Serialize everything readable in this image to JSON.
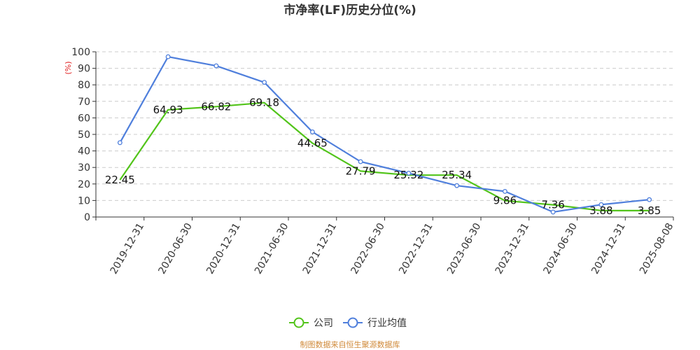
{
  "chart_data": {
    "type": "line",
    "title": "市净率(LF)历史分位(%)",
    "ylabel": "(%)",
    "ylim": [
      0,
      100
    ],
    "yticks": [
      "0",
      "10",
      "20",
      "30",
      "40",
      "50",
      "60",
      "70",
      "80",
      "90",
      "100"
    ],
    "grid": true,
    "legend_position": "bottom",
    "categories": [
      "2019-12-31",
      "2020-06-30",
      "2020-12-31",
      "2021-06-30",
      "2021-12-31",
      "2022-06-30",
      "2022-12-31",
      "2023-06-30",
      "2023-12-31",
      "2024-06-30",
      "2024-12-31",
      "2025-08-08"
    ],
    "series": [
      {
        "name": "公司",
        "color": "#52c41a",
        "values": [
          22.45,
          64.93,
          66.82,
          69.18,
          44.65,
          27.79,
          25.32,
          25.34,
          9.86,
          7.36,
          3.88,
          3.85
        ],
        "labels": [
          "22.45",
          "64.93",
          "66.82",
          "69.18",
          "44.65",
          "27.79",
          "25.32",
          "25.34",
          "9.86",
          "7.36",
          "3.88",
          "3.85"
        ]
      },
      {
        "name": "行业均值",
        "color": "#4f7fdc",
        "values": [
          45,
          97,
          91.5,
          81.5,
          51.5,
          33.5,
          26.5,
          19,
          15.5,
          3,
          7.5,
          10.5
        ]
      }
    ]
  },
  "source_text": "制图数据来自恒生聚源数据库"
}
